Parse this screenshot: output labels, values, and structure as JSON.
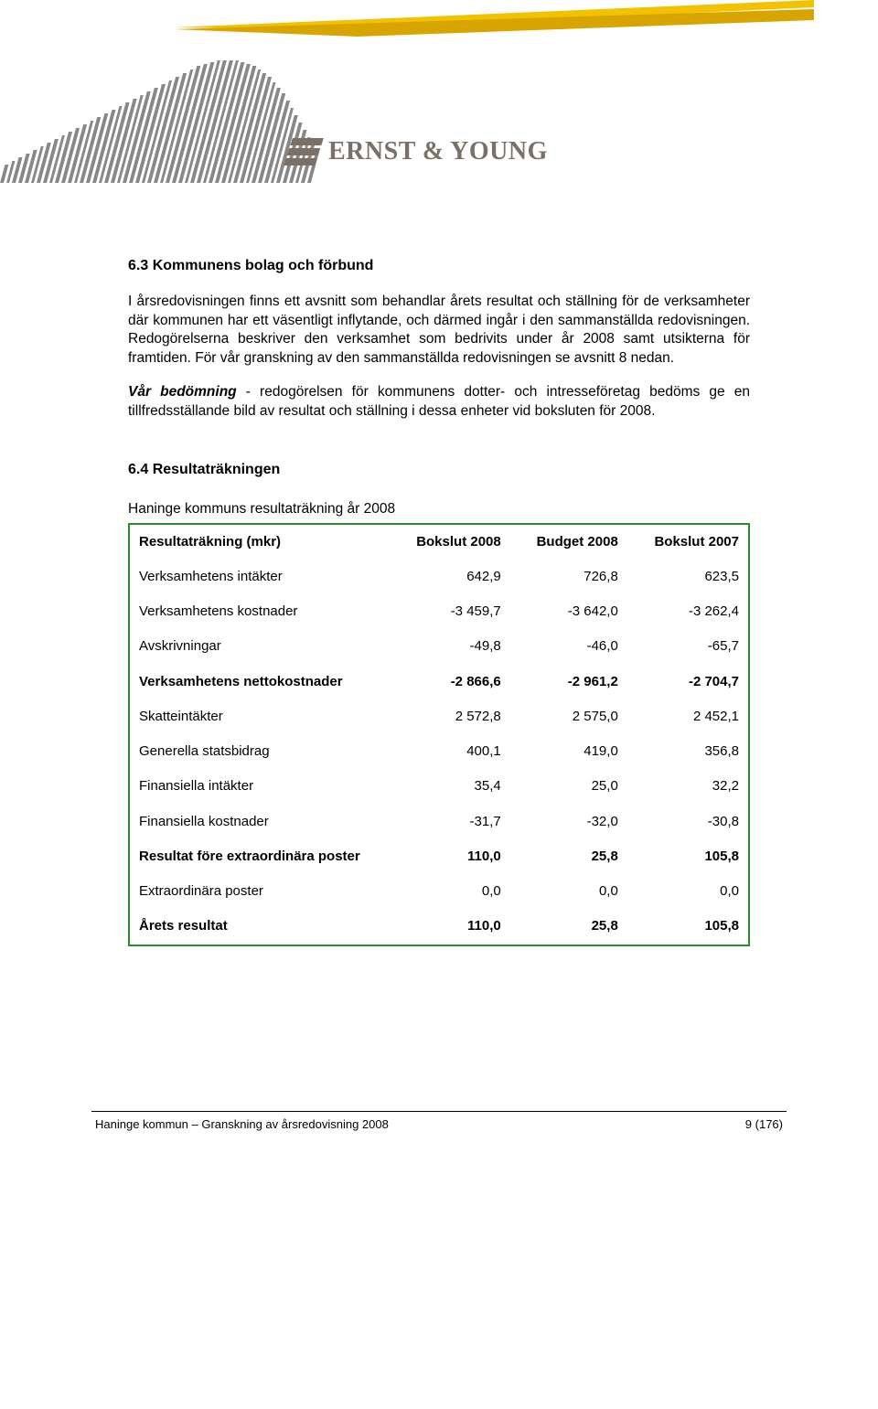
{
  "logo": {
    "text": "ERNST & YOUNG"
  },
  "section63": {
    "heading": "6.3   Kommunens bolag och förbund",
    "p1": "I årsredovisningen finns ett avsnitt som behandlar årets resultat och ställning för de verksamheter där kommunen har ett väsentligt inflytande, och därmed ingår i den sammanställda redovisningen. Redogörelserna beskriver den verksamhet som bedrivits under år 2008 samt utsikterna för framtiden. För vår granskning av den sammanställda redovisningen se avsnitt 8 nedan.",
    "p2_lead": "Vår bedömning",
    "p2_rest": " - redogörelsen för kommunens dotter- och intresseföretag bedöms ge en tillfredsställande bild av resultat och ställning i dessa enheter vid boksluten för 2008."
  },
  "section64": {
    "heading": "6.4    Resultaträkningen",
    "caption": "Haninge kommuns resultaträkning år 2008"
  },
  "table": {
    "border_color": "#2e8b2e",
    "columns": [
      "Resultaträkning (mkr)",
      "Bokslut 2008",
      "Budget 2008",
      "Bokslut 2007"
    ],
    "rows": [
      {
        "label": "Verksamhetens intäkter",
        "c1": "642,9",
        "c2": "726,8",
        "c3": "623,5",
        "bold": false
      },
      {
        "label": "Verksamhetens kostnader",
        "c1": "-3 459,7",
        "c2": "-3 642,0",
        "c3": "-3 262,4",
        "bold": false
      },
      {
        "label": "Avskrivningar",
        "c1": "-49,8",
        "c2": "-46,0",
        "c3": "-65,7",
        "bold": false
      },
      {
        "label": "Verksamhetens nettokostnader",
        "c1": "-2 866,6",
        "c2": "-2 961,2",
        "c3": "-2 704,7",
        "bold": true
      },
      {
        "label": "Skatteintäkter",
        "c1": "2 572,8",
        "c2": "2 575,0",
        "c3": "2 452,1",
        "bold": false
      },
      {
        "label": "Generella statsbidrag",
        "c1": "400,1",
        "c2": "419,0",
        "c3": "356,8",
        "bold": false
      },
      {
        "label": "Finansiella intäkter",
        "c1": "35,4",
        "c2": "25,0",
        "c3": "32,2",
        "bold": false
      },
      {
        "label": "Finansiella kostnader",
        "c1": "-31,7",
        "c2": "-32,0",
        "c3": "-30,8",
        "bold": false
      },
      {
        "label": "Resultat före extraordinära poster",
        "c1": "110,0",
        "c2": "25,8",
        "c3": "105,8",
        "bold": true
      },
      {
        "label": "Extraordinära poster",
        "c1": "0,0",
        "c2": "0,0",
        "c3": "0,0",
        "bold": false
      },
      {
        "label": "Årets resultat",
        "c1": "110,0",
        "c2": "25,8",
        "c3": "105,8",
        "bold": true
      }
    ]
  },
  "footer": {
    "left": "Haninge kommun – Granskning av årsredovisning 2008",
    "right": "9 (176)"
  },
  "barcode_heights": [
    20,
    24,
    28,
    32,
    36,
    40,
    44,
    48,
    52,
    56,
    60,
    64,
    68,
    72,
    76,
    80,
    84,
    88,
    92,
    96,
    100,
    104,
    108,
    112,
    116,
    120,
    124,
    128,
    130,
    132,
    134,
    134,
    134,
    134,
    132,
    130,
    128,
    124,
    120,
    116,
    110,
    104,
    98,
    90,
    82,
    74,
    66,
    58,
    50,
    42,
    34
  ],
  "colors": {
    "swoosh_top": "#f2c200",
    "swoosh_bottom": "#d8a400",
    "logo": "#7a7068",
    "text": "#000000"
  }
}
